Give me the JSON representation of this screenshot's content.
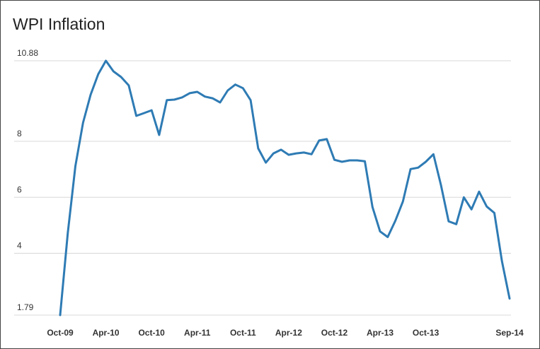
{
  "chart_data": {
    "type": "line",
    "title": "WPI Inflation",
    "categories": [
      "Oct-09",
      null,
      null,
      null,
      null,
      null,
      "Apr-10",
      null,
      null,
      null,
      null,
      null,
      "Oct-10",
      null,
      null,
      null,
      null,
      null,
      "Apr-11",
      null,
      null,
      null,
      null,
      null,
      "Oct-11",
      null,
      null,
      null,
      null,
      null,
      "Apr-12",
      null,
      null,
      null,
      null,
      null,
      "Oct-12",
      null,
      null,
      null,
      null,
      null,
      "Apr-13",
      null,
      null,
      null,
      null,
      null,
      "Oct-13",
      null,
      null,
      null,
      null,
      null,
      null,
      null,
      null,
      null,
      null,
      "Sep-14"
    ],
    "series": [
      {
        "name": "WPI Inflation",
        "color": "#2e7bb4",
        "values": [
          1.79,
          4.73,
          7.11,
          8.66,
          9.67,
          10.4,
          10.88,
          10.5,
          10.3,
          10.0,
          8.91,
          9.01,
          9.11,
          8.23,
          9.47,
          9.49,
          9.57,
          9.72,
          9.77,
          9.6,
          9.54,
          9.39,
          9.82,
          10.03,
          9.9,
          9.47,
          7.75,
          7.24,
          7.57,
          7.7,
          7.52,
          7.57,
          7.6,
          7.54,
          8.03,
          8.08,
          7.34,
          7.27,
          7.32,
          7.32,
          7.29,
          5.65,
          4.78,
          4.58,
          5.16,
          5.85,
          7.01,
          7.06,
          7.27,
          7.54,
          6.43,
          5.14,
          5.04,
          6.0,
          5.57,
          6.2,
          5.67,
          5.44,
          3.72,
          2.38
        ]
      }
    ],
    "ylim": [
      1.79,
      10.88
    ],
    "yticks": [
      1.79,
      4,
      6,
      8,
      10.88
    ],
    "grid": true
  }
}
